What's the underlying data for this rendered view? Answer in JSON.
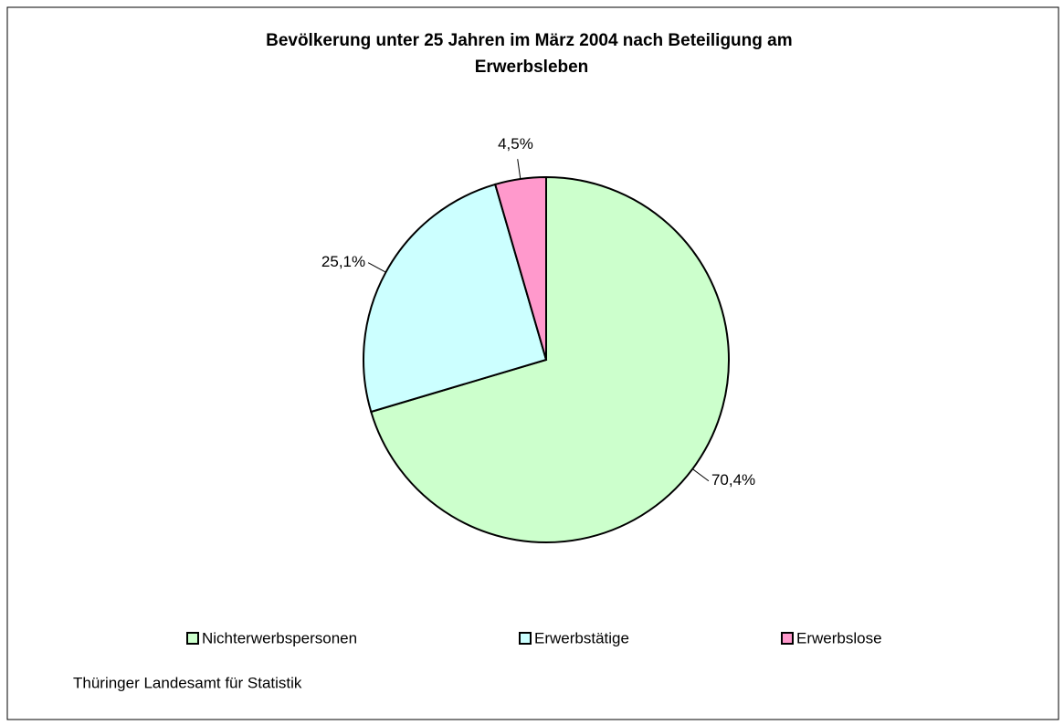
{
  "chart_data": {
    "type": "pie",
    "title": "Bevölkerung unter 25 Jahren im März 2004 nach Beteiligung am Erwerbsleben",
    "categories": [
      "Nichterwerbspersonen",
      "Erwerbstätige",
      "Erwerbslose"
    ],
    "values": [
      70.4,
      25.1,
      4.5
    ],
    "value_labels": [
      "70,4%",
      "25,1%",
      "4,5%"
    ],
    "colors": [
      "#ccffcc",
      "#ccffff",
      "#ff99cc"
    ],
    "legend": "bottom",
    "source": "Thüringer Landesamt für Statistik"
  }
}
